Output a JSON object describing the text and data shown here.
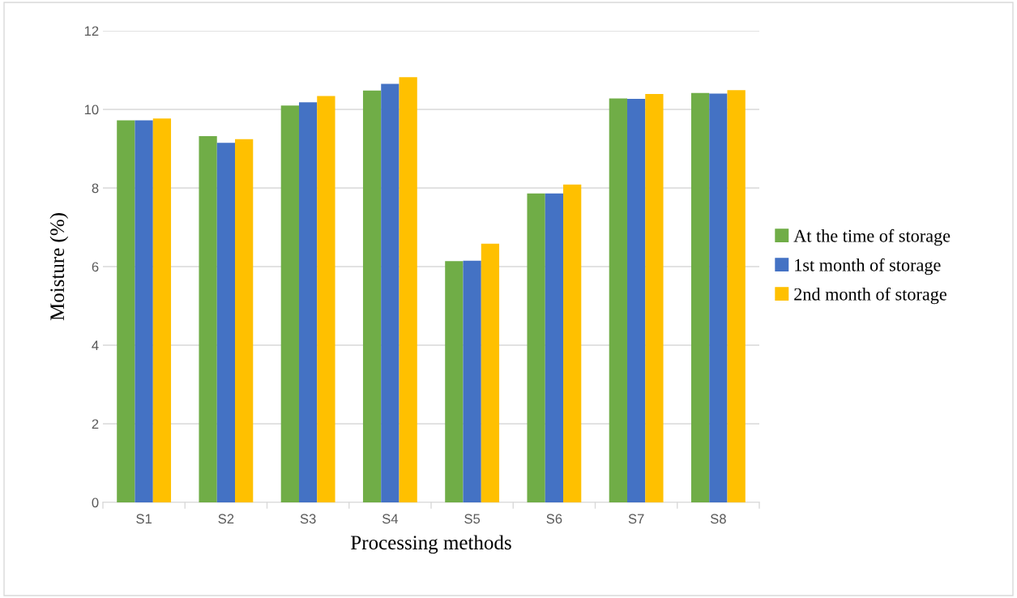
{
  "chart_data": {
    "type": "bar",
    "xlabel": "Processing methods",
    "ylabel": "Moisture (%)",
    "categories": [
      "S1",
      "S2",
      "S3",
      "S4",
      "S5",
      "S6",
      "S7",
      "S8"
    ],
    "series": [
      {
        "name": "At the time of storage",
        "color": "#70ad47",
        "values": [
          9.72,
          9.32,
          10.1,
          10.48,
          6.14,
          7.86,
          10.28,
          10.42
        ]
      },
      {
        "name": "1st month of storage",
        "color": "#4472c4",
        "values": [
          9.72,
          9.15,
          10.18,
          10.65,
          6.15,
          7.86,
          10.27,
          10.4
        ]
      },
      {
        "name": "2nd month of storage",
        "color": "#ffc000",
        "values": [
          9.77,
          9.24,
          10.34,
          10.82,
          6.58,
          8.09,
          10.39,
          10.49
        ]
      }
    ],
    "ylim": [
      0,
      12
    ],
    "yticks": [
      0,
      2,
      4,
      6,
      8,
      10,
      12
    ],
    "grid": "y",
    "legend": "right"
  }
}
